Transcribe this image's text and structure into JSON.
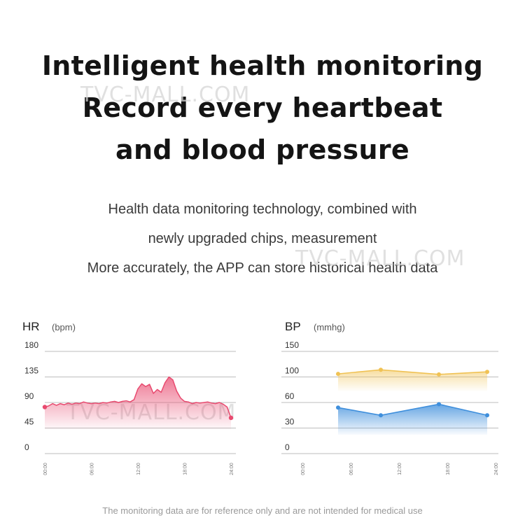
{
  "headline": {
    "line1": "Intelligent health monitoring",
    "line2": "Record every heartbeat",
    "line3": "and blood pressure"
  },
  "subtitle": {
    "line1": "Health data monitoring technology, combined with",
    "line2": "newly upgraded chips, measurement",
    "line3": "More accurately, the APP can store historical health data"
  },
  "watermark": "TVC-MALL.COM",
  "disclaimer": "The monitoring data are for reference only and are not intended for medical use",
  "colors": {
    "hr_line": "#e84a6f",
    "bp_high": "#f0c254",
    "bp_low": "#3f8fdc",
    "grid": "#bdbdbd"
  },
  "chart_data": [
    {
      "type": "area",
      "title": "HR",
      "unit": "(bpm)",
      "ylim": [
        0,
        180
      ],
      "yticks": [
        "0",
        "45",
        "90",
        "135",
        "180"
      ],
      "xlim": [
        0,
        24
      ],
      "xticks": [
        "00:00",
        "06:00",
        "12:00",
        "18:00",
        "24:00"
      ],
      "grid": true,
      "series": [
        {
          "x": [
            0,
            0.5,
            1,
            1.5,
            2,
            2.5,
            3,
            3.5,
            4,
            4.5,
            5,
            5.5,
            6,
            6.5,
            7,
            7.5,
            8,
            8.5,
            9,
            9.5,
            10,
            10.5,
            11,
            11.5,
            12,
            12.5,
            13,
            13.5,
            14,
            14.5,
            15,
            15.5,
            16,
            16.5,
            17,
            17.5,
            18,
            18.5,
            19,
            19.5,
            20,
            20.5,
            21,
            21.5,
            22,
            22.5,
            23,
            23.5,
            24
          ],
          "values": [
            82,
            84,
            88,
            85,
            88,
            86,
            89,
            87,
            89,
            88,
            91,
            89,
            88,
            89,
            88,
            90,
            89,
            91,
            92,
            90,
            92,
            93,
            91,
            95,
            114,
            123,
            118,
            122,
            106,
            113,
            108,
            125,
            135,
            130,
            110,
            98,
            92,
            91,
            88,
            90,
            89,
            90,
            91,
            89,
            88,
            90,
            87,
            82,
            63
          ]
        }
      ]
    },
    {
      "type": "line",
      "title": "BP",
      "unit": "(mmhg)",
      "ylim": [
        0,
        150
      ],
      "yticks": [
        "0",
        "30",
        "60",
        "100",
        "150"
      ],
      "xlim": [
        0,
        24
      ],
      "xticks": [
        "00:00",
        "06:00",
        "12:00",
        "18:00",
        "24:00"
      ],
      "grid": true,
      "series": [
        {
          "x": [
            6,
            12,
            18,
            24
          ],
          "values": [
            106,
            114,
            105,
            110
          ]
        },
        {
          "x": [
            6,
            12,
            18,
            24
          ],
          "values": [
            54,
            45,
            58,
            45
          ]
        }
      ]
    }
  ]
}
